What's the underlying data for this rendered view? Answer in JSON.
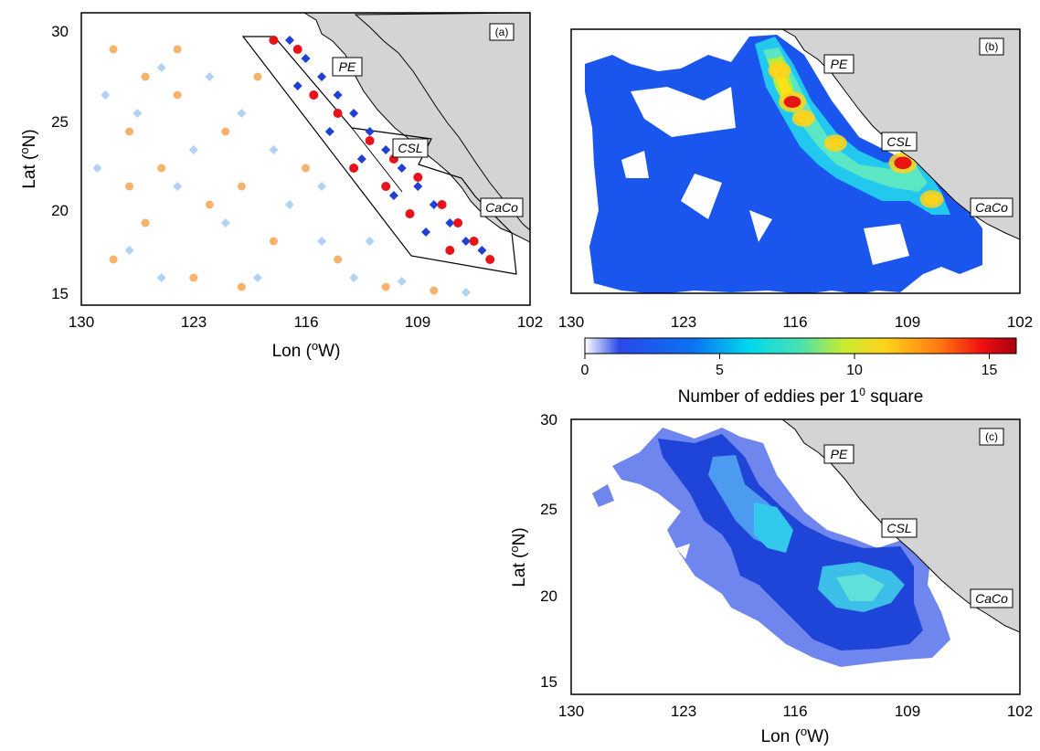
{
  "panels": {
    "a": {
      "tag": "(a)"
    },
    "b": {
      "tag": "(b)"
    },
    "c": {
      "tag": "(c)"
    }
  },
  "place_labels": {
    "pe": "PE",
    "csl": "CSL",
    "caco": "CaCo"
  },
  "axes": {
    "lon_ticks": [
      "130",
      "123",
      "116",
      "109",
      "102"
    ],
    "lat_ticks": [
      "30",
      "25",
      "20",
      "15"
    ],
    "xlabel_text": "Lon (",
    "xlabel_sup": "o",
    "xlabel_end": "W)",
    "ylabel_text": "Lat (",
    "ylabel_sup": "o",
    "ylabel_end": "N)"
  },
  "colorbar": {
    "ticks": [
      "0",
      "5",
      "10",
      "15"
    ],
    "label_pre": "Number of eddies per 1",
    "label_sup": "0",
    "label_post": " square"
  },
  "colors": {
    "land": "#d4d4d4",
    "orange_dots": "#f7b36b",
    "lightblue_diamonds": "#b3d1f2",
    "blue_diamonds": "#1f3fd6",
    "red_dots": "#e8131a"
  },
  "chart_data": {
    "type": "scatter",
    "map_extent": {
      "lon": [
        130,
        102
      ],
      "lat": [
        14.5,
        30.5
      ]
    },
    "scatter_panel_a": {
      "outer_region": {
        "orange": [
          [
            128,
            28.5
          ],
          [
            126,
            27
          ],
          [
            124,
            26
          ],
          [
            127,
            24
          ],
          [
            125,
            22
          ],
          [
            122,
            20
          ],
          [
            126,
            19
          ],
          [
            128,
            17
          ],
          [
            123,
            16
          ],
          [
            120,
            15.5
          ],
          [
            118,
            18
          ],
          [
            121,
            24
          ],
          [
            119,
            27
          ],
          [
            124,
            28.5
          ],
          [
            116,
            22
          ],
          [
            114,
            17
          ],
          [
            111,
            15.5
          ],
          [
            108,
            15.3
          ],
          [
            120,
            21
          ],
          [
            127,
            21
          ]
        ],
        "lightblue": [
          [
            128.5,
            26
          ],
          [
            126.5,
            25
          ],
          [
            125,
            27.5
          ],
          [
            123,
            23
          ],
          [
            121,
            19
          ],
          [
            119,
            16
          ],
          [
            117,
            20
          ],
          [
            115,
            18
          ],
          [
            113,
            16
          ],
          [
            110,
            15.8
          ],
          [
            122,
            27
          ],
          [
            124,
            21
          ],
          [
            127,
            17.5
          ],
          [
            120,
            25
          ],
          [
            118,
            23
          ],
          [
            125,
            16
          ],
          [
            115,
            21
          ],
          [
            112,
            18
          ],
          [
            106,
            15.2
          ],
          [
            129,
            22
          ]
        ]
      },
      "coastal_region": {
        "blue": [
          [
            117,
            29
          ],
          [
            116,
            28
          ],
          [
            115,
            27
          ],
          [
            114,
            26
          ],
          [
            113,
            25
          ],
          [
            112,
            24
          ],
          [
            111,
            23
          ],
          [
            110,
            22
          ],
          [
            109,
            21
          ],
          [
            108,
            20
          ],
          [
            107,
            19
          ],
          [
            106,
            18
          ],
          [
            105,
            17.5
          ],
          [
            114.5,
            24
          ],
          [
            112.5,
            22.5
          ],
          [
            110.5,
            20.5
          ],
          [
            108.5,
            18.5
          ],
          [
            116.5,
            26.5
          ]
        ],
        "red": [
          [
            118,
            29
          ],
          [
            116.5,
            28.5
          ],
          [
            115.5,
            26
          ],
          [
            114,
            25
          ],
          [
            112,
            23.5
          ],
          [
            110.5,
            22.5
          ],
          [
            109,
            21.5
          ],
          [
            107.5,
            20
          ],
          [
            106.5,
            19
          ],
          [
            105.5,
            18
          ],
          [
            104.5,
            17
          ],
          [
            113,
            22
          ],
          [
            111,
            21
          ],
          [
            109.5,
            19.5
          ],
          [
            107,
            17.5
          ]
        ]
      }
    },
    "density_panel_b": {
      "hotspots": [
        {
          "lon": 116.2,
          "lat": 26.1,
          "value": 14
        },
        {
          "lon": 109.3,
          "lat": 22.4,
          "value": 15
        },
        {
          "lon": 107.5,
          "lat": 20.2,
          "value": 10
        },
        {
          "lon": 117,
          "lat": 28,
          "value": 9
        },
        {
          "lon": 115.5,
          "lat": 25.1,
          "value": 9
        },
        {
          "lon": 113.5,
          "lat": 23.6,
          "value": 9
        }
      ],
      "color_scale_max": 16
    },
    "density_panel_c": {
      "core_lon": [
        115.5,
        111
      ],
      "core_lat": [
        24,
        20
      ]
    }
  }
}
